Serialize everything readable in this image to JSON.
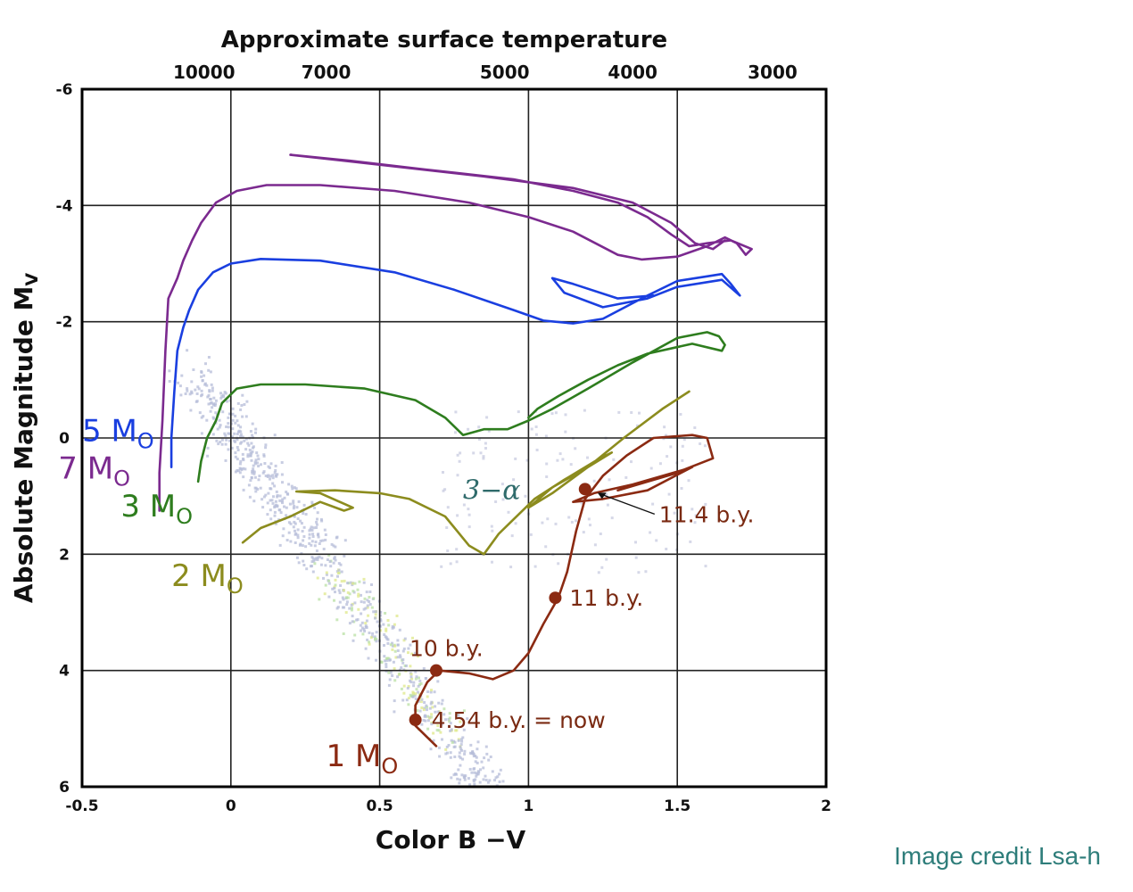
{
  "credit": "Image credit Lsa-h",
  "chart_data": {
    "type": "line",
    "title": "",
    "xlabel": "Color B −V",
    "ylabel": "Absolute Magnitude M",
    "ylabel_sub": "V",
    "xlim": [
      -0.5,
      2
    ],
    "ylim": [
      6,
      -6
    ],
    "y_inverted": true,
    "grid": true,
    "x_ticks": [
      "-0.5",
      "0",
      "0.5",
      "1",
      "1.5",
      "2"
    ],
    "x_tick_values": [
      -0.5,
      0,
      0.5,
      1,
      1.5,
      2
    ],
    "y_ticks": [
      "-6",
      "-4",
      "-2",
      "0",
      "2",
      "4",
      "6"
    ],
    "y_tick_values": [
      -6,
      -4,
      -2,
      0,
      2,
      4,
      6
    ],
    "top_axis": {
      "label": "Approximate surface temperature",
      "ticks": [
        {
          "label": "10000",
          "x": -0.09
        },
        {
          "label": "7000",
          "x": 0.32
        },
        {
          "label": "5000",
          "x": 0.92
        },
        {
          "label": "4000",
          "x": 1.35
        },
        {
          "label": "3000",
          "x": 1.82
        }
      ]
    },
    "series": [
      {
        "name": "7 M",
        "name_sub": "O",
        "color": "#7b2a8f",
        "label_pos": {
          "x": -0.58,
          "y": 0.7
        },
        "points": [
          [
            -0.24,
            1.25
          ],
          [
            -0.24,
            0.6
          ],
          [
            -0.23,
            -0.3
          ],
          [
            -0.22,
            -1.5
          ],
          [
            -0.21,
            -2.4
          ],
          [
            -0.18,
            -2.75
          ],
          [
            -0.16,
            -3.05
          ],
          [
            -0.13,
            -3.4
          ],
          [
            -0.1,
            -3.7
          ],
          [
            -0.05,
            -4.05
          ],
          [
            0.02,
            -4.25
          ],
          [
            0.12,
            -4.35
          ],
          [
            0.3,
            -4.35
          ],
          [
            0.55,
            -4.25
          ],
          [
            0.8,
            -4.05
          ],
          [
            1.0,
            -3.8
          ],
          [
            1.15,
            -3.55
          ],
          [
            1.3,
            -3.15
          ],
          [
            1.38,
            -3.07
          ],
          [
            1.5,
            -3.12
          ],
          [
            1.6,
            -3.3
          ],
          [
            1.66,
            -3.45
          ],
          [
            1.7,
            -3.35
          ],
          [
            1.73,
            -3.15
          ],
          [
            1.75,
            -3.25
          ],
          [
            1.68,
            -3.4
          ],
          [
            1.6,
            -3.35
          ],
          [
            1.54,
            -3.3
          ],
          [
            1.48,
            -3.5
          ],
          [
            1.4,
            -3.8
          ],
          [
            1.3,
            -4.05
          ],
          [
            1.15,
            -4.25
          ],
          [
            0.95,
            -4.45
          ],
          [
            0.65,
            -4.62
          ],
          [
            0.4,
            -4.77
          ],
          [
            0.2,
            -4.87
          ],
          [
            0.5,
            -4.7
          ],
          [
            0.85,
            -4.5
          ],
          [
            1.15,
            -4.3
          ],
          [
            1.35,
            -4.05
          ],
          [
            1.48,
            -3.7
          ],
          [
            1.56,
            -3.35
          ],
          [
            1.62,
            -3.25
          ],
          [
            1.66,
            -3.4
          ]
        ]
      },
      {
        "name": "5 M",
        "name_sub": "O",
        "color": "#1a3fe0",
        "label_pos": {
          "x": -0.5,
          "y": 0.05
        },
        "points": [
          [
            -0.2,
            0.5
          ],
          [
            -0.2,
            0.0
          ],
          [
            -0.19,
            -0.8
          ],
          [
            -0.18,
            -1.5
          ],
          [
            -0.16,
            -1.9
          ],
          [
            -0.14,
            -2.2
          ],
          [
            -0.11,
            -2.55
          ],
          [
            -0.06,
            -2.85
          ],
          [
            0.0,
            -3.0
          ],
          [
            0.1,
            -3.08
          ],
          [
            0.3,
            -3.05
          ],
          [
            0.55,
            -2.85
          ],
          [
            0.75,
            -2.55
          ],
          [
            0.95,
            -2.2
          ],
          [
            1.05,
            -2.02
          ],
          [
            1.15,
            -1.97
          ],
          [
            1.25,
            -2.05
          ],
          [
            1.38,
            -2.4
          ],
          [
            1.5,
            -2.7
          ],
          [
            1.6,
            -2.78
          ],
          [
            1.65,
            -2.82
          ],
          [
            1.68,
            -2.65
          ],
          [
            1.71,
            -2.45
          ],
          [
            1.65,
            -2.72
          ],
          [
            1.5,
            -2.6
          ],
          [
            1.4,
            -2.4
          ],
          [
            1.25,
            -2.25
          ],
          [
            1.12,
            -2.5
          ],
          [
            1.08,
            -2.75
          ],
          [
            1.15,
            -2.65
          ],
          [
            1.3,
            -2.4
          ],
          [
            1.42,
            -2.45
          ]
        ]
      },
      {
        "name": "3 M",
        "name_sub": "O",
        "color": "#2e7d1e",
        "label_pos": {
          "x": -0.37,
          "y": 1.35
        },
        "points": [
          [
            -0.11,
            0.75
          ],
          [
            -0.1,
            0.4
          ],
          [
            -0.08,
            0.0
          ],
          [
            -0.05,
            -0.3
          ],
          [
            -0.03,
            -0.6
          ],
          [
            0.02,
            -0.85
          ],
          [
            0.1,
            -0.92
          ],
          [
            0.25,
            -0.92
          ],
          [
            0.45,
            -0.85
          ],
          [
            0.62,
            -0.65
          ],
          [
            0.72,
            -0.35
          ],
          [
            0.78,
            -0.05
          ],
          [
            0.85,
            -0.15
          ],
          [
            0.93,
            -0.15
          ],
          [
            1.0,
            -0.3
          ],
          [
            1.08,
            -0.5
          ],
          [
            1.2,
            -0.85
          ],
          [
            1.35,
            -1.3
          ],
          [
            1.5,
            -1.72
          ],
          [
            1.6,
            -1.82
          ],
          [
            1.64,
            -1.75
          ],
          [
            1.66,
            -1.6
          ],
          [
            1.65,
            -1.5
          ],
          [
            1.55,
            -1.62
          ],
          [
            1.4,
            -1.45
          ],
          [
            1.3,
            -1.25
          ],
          [
            1.2,
            -1.0
          ],
          [
            1.1,
            -0.72
          ],
          [
            1.03,
            -0.5
          ],
          [
            1.0,
            -0.35
          ]
        ]
      },
      {
        "name": "2 M",
        "name_sub": "O",
        "color": "#8c8c1e",
        "label_pos": {
          "x": -0.2,
          "y": 2.55
        },
        "points": [
          [
            0.04,
            1.8
          ],
          [
            0.1,
            1.55
          ],
          [
            0.2,
            1.35
          ],
          [
            0.3,
            1.1
          ],
          [
            0.38,
            1.25
          ],
          [
            0.41,
            1.2
          ],
          [
            0.3,
            0.95
          ],
          [
            0.22,
            0.92
          ],
          [
            0.35,
            0.9
          ],
          [
            0.5,
            0.95
          ],
          [
            0.6,
            1.05
          ],
          [
            0.72,
            1.35
          ],
          [
            0.8,
            1.85
          ],
          [
            0.85,
            2.0
          ],
          [
            0.9,
            1.65
          ],
          [
            0.95,
            1.4
          ],
          [
            1.02,
            1.05
          ],
          [
            1.12,
            0.72
          ],
          [
            1.24,
            0.35
          ],
          [
            1.28,
            0.25
          ],
          [
            1.2,
            0.5
          ],
          [
            1.08,
            0.85
          ],
          [
            1.0,
            1.2
          ],
          [
            1.08,
            0.95
          ],
          [
            1.2,
            0.5
          ],
          [
            1.32,
            0.0
          ],
          [
            1.45,
            -0.5
          ],
          [
            1.54,
            -0.8
          ]
        ]
      },
      {
        "name": "1 M",
        "name_sub": "O",
        "color": "#8b2a12",
        "label_pos": {
          "x": 0.32,
          "y": 5.65
        },
        "points": [
          [
            0.69,
            5.3
          ],
          [
            0.65,
            5.1
          ],
          [
            0.62,
            4.95
          ],
          [
            0.62,
            4.6
          ],
          [
            0.66,
            4.2
          ],
          [
            0.7,
            4.0
          ],
          [
            0.8,
            4.05
          ],
          [
            0.88,
            4.15
          ],
          [
            0.95,
            4.0
          ],
          [
            1.0,
            3.7
          ],
          [
            1.05,
            3.2
          ],
          [
            1.1,
            2.75
          ],
          [
            1.13,
            2.3
          ],
          [
            1.16,
            1.6
          ],
          [
            1.19,
            1.05
          ],
          [
            1.25,
            0.65
          ],
          [
            1.33,
            0.3
          ],
          [
            1.42,
            0.0
          ],
          [
            1.55,
            -0.05
          ],
          [
            1.6,
            0.0
          ],
          [
            1.62,
            0.35
          ],
          [
            1.52,
            0.55
          ],
          [
            1.35,
            0.8
          ],
          [
            1.22,
            0.95
          ],
          [
            1.15,
            1.1
          ],
          [
            1.25,
            1.05
          ],
          [
            1.4,
            0.9
          ],
          [
            1.55,
            0.5
          ],
          [
            1.5,
            0.6
          ],
          [
            1.3,
            0.9
          ]
        ]
      }
    ],
    "annotations": [
      {
        "text": "10 b.y.",
        "x": 0.69,
        "y": 4.0,
        "dx": -30,
        "dy": -16,
        "marker": true
      },
      {
        "text": "4.54 b.y. = now",
        "x": 0.62,
        "y": 4.85,
        "dx": 18,
        "dy": 9,
        "marker": true
      },
      {
        "text": "11 b.y.",
        "x": 1.09,
        "y": 2.75,
        "dx": 16,
        "dy": 9,
        "marker": true
      },
      {
        "text": "11.4 b.y.",
        "x": 1.19,
        "y": 0.88,
        "dx": 83,
        "dy": 37,
        "marker": true,
        "pointer": true
      }
    ],
    "special_label": {
      "text": "3−α",
      "color": "#2f6b6b",
      "x": 0.78,
      "y": 1.05
    }
  }
}
